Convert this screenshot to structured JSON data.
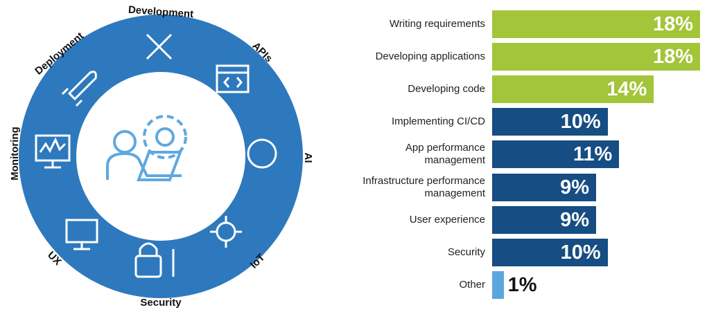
{
  "diagram": {
    "center": "",
    "segments": [
      "Development",
      "APIs",
      "AI",
      "IoT",
      "Security",
      "UX",
      "Monitoring",
      "Deployment"
    ]
  },
  "chart_data": {
    "type": "bar",
    "orientation": "horizontal",
    "categories": [
      "Writing requirements",
      "Developing applications",
      "Developing code",
      "Implementing CI/CD",
      "App performance\nmanagement",
      "Infrastructure performance\nmanagement",
      "User experience",
      "Security",
      "Other"
    ],
    "values": [
      18,
      18,
      14,
      10,
      11,
      9,
      9,
      10,
      1
    ],
    "value_labels": [
      "18%",
      "18%",
      "14%",
      "10%",
      "11%",
      "9%",
      "9%",
      "10%",
      "1%"
    ],
    "colors": [
      "#a2c539",
      "#a2c539",
      "#a2c539",
      "#164d82",
      "#164d82",
      "#164d82",
      "#164d82",
      "#164d82",
      "#5ba6de"
    ]
  }
}
